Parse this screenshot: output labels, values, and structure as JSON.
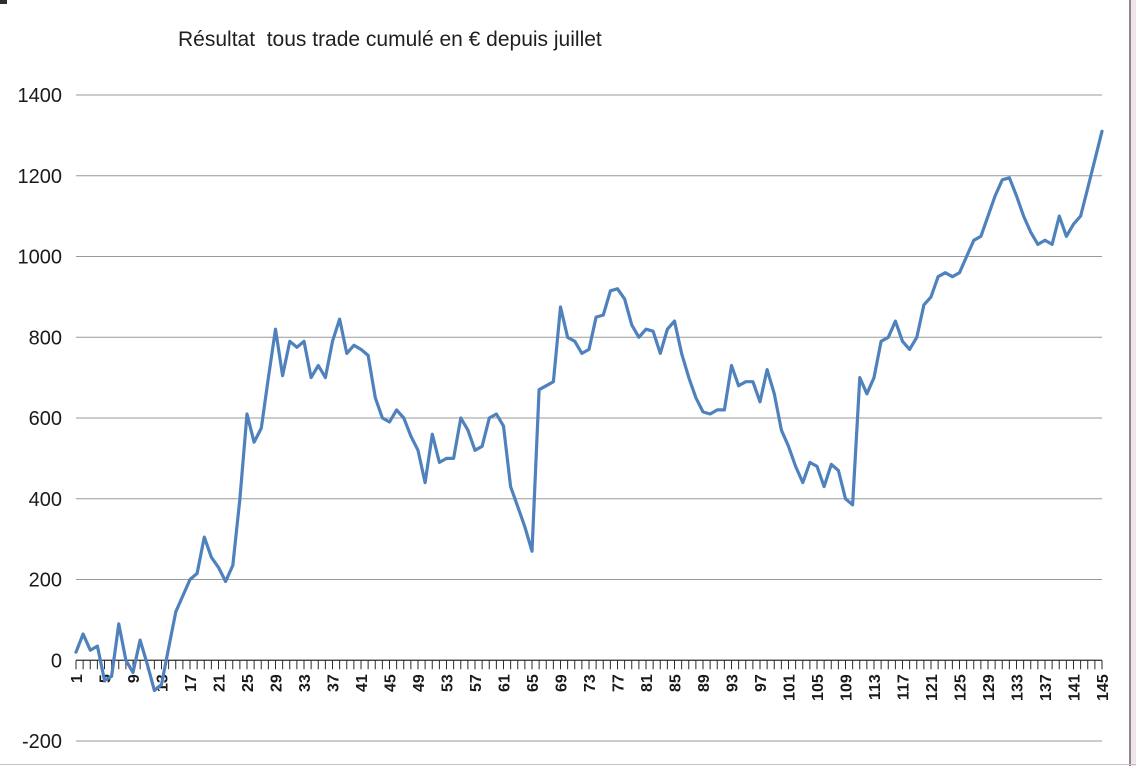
{
  "page": {
    "background": "#ffffff"
  },
  "chart_data": {
    "type": "line",
    "title": "Résultat  tous trade cumulé en € depuis juillet",
    "x_start": 1,
    "x_step": 1,
    "values": [
      20,
      65,
      25,
      35,
      -50,
      -40,
      90,
      0,
      -30,
      50,
      -10,
      -75,
      -60,
      30,
      120,
      160,
      200,
      215,
      305,
      255,
      230,
      195,
      235,
      400,
      610,
      540,
      575,
      700,
      820,
      705,
      790,
      775,
      790,
      700,
      730,
      700,
      790,
      845,
      760,
      780,
      770,
      755,
      650,
      600,
      590,
      620,
      600,
      555,
      520,
      440,
      560,
      490,
      500,
      500,
      600,
      570,
      520,
      530,
      600,
      610,
      580,
      430,
      380,
      330,
      270,
      670,
      680,
      690,
      875,
      800,
      790,
      760,
      770,
      850,
      855,
      915,
      920,
      895,
      830,
      800,
      820,
      815,
      760,
      820,
      840,
      760,
      700,
      650,
      615,
      610,
      620,
      620,
      730,
      680,
      690,
      690,
      640,
      720,
      660,
      570,
      530,
      480,
      440,
      490,
      480,
      430,
      485,
      470,
      400,
      385,
      700,
      660,
      700,
      790,
      800,
      840,
      790,
      770,
      800,
      880,
      900,
      950,
      960,
      950,
      960,
      1000,
      1040,
      1050,
      1100,
      1150,
      1190,
      1195,
      1150,
      1100,
      1060,
      1030,
      1040,
      1030,
      1100,
      1050,
      1080,
      1100,
      1170,
      1240,
      1310
    ],
    "x_tick_labels": [
      "1",
      "5",
      "9",
      "13",
      "17",
      "21",
      "25",
      "29",
      "33",
      "37",
      "41",
      "45",
      "49",
      "53",
      "57",
      "61",
      "65",
      "69",
      "73",
      "77",
      "81",
      "85",
      "89",
      "93",
      "97",
      "101",
      "105",
      "109",
      "113",
      "117",
      "121",
      "125",
      "129",
      "133",
      "137",
      "141",
      "145"
    ],
    "x_tick_label_step": 4,
    "ylim": [
      -200,
      1400
    ],
    "y_ticks": [
      -200,
      0,
      200,
      400,
      600,
      800,
      1000,
      1200,
      1400
    ],
    "grid": true,
    "legend": "none",
    "line_color": "#4F81BD",
    "grid_color": "#9a9a9a",
    "axis_color": "#2b2b2b"
  }
}
